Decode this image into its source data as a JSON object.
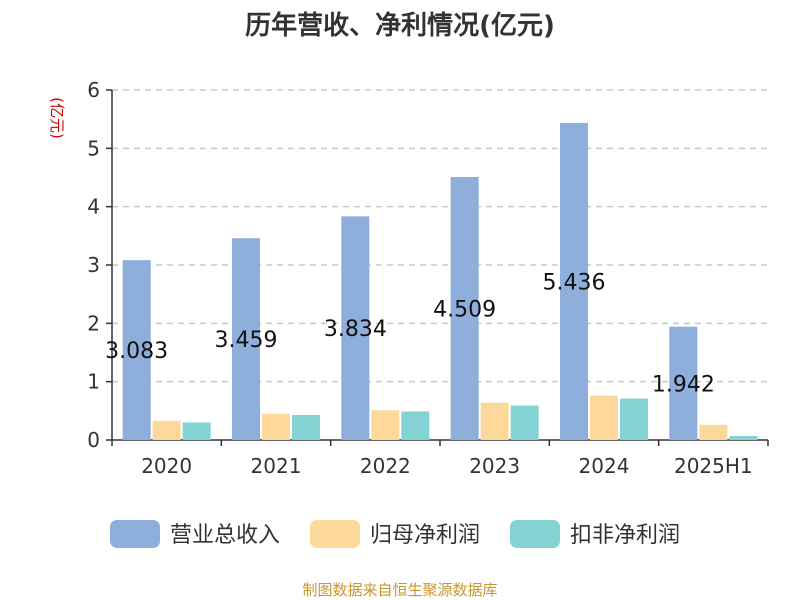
{
  "chart_data": {
    "type": "bar",
    "title": "历年营收、净利情况(亿元)",
    "unit_label": "(亿元)",
    "categories": [
      "2020",
      "2021",
      "2022",
      "2023",
      "2024",
      "2025H1"
    ],
    "y_ticks": [
      "0",
      "1",
      "2",
      "3",
      "4",
      "5",
      "6"
    ],
    "ylim": [
      0,
      6
    ],
    "grid": true,
    "legend_position": "bottom",
    "series": [
      {
        "name": "营业总收入",
        "color": "#8eaedb",
        "values": [
          3.083,
          3.459,
          3.834,
          4.509,
          5.436,
          1.942
        ],
        "labels": [
          "3.083",
          "3.459",
          "3.834",
          "4.509",
          "5.436",
          "1.942"
        ]
      },
      {
        "name": "归母净利润",
        "color": "#fdd89b",
        "values": [
          0.33,
          0.45,
          0.51,
          0.64,
          0.76,
          0.26
        ]
      },
      {
        "name": "扣非净利润",
        "color": "#83d3d5",
        "values": [
          0.3,
          0.43,
          0.49,
          0.59,
          0.71,
          0.07
        ]
      }
    ],
    "source": "制图数据来自恒生聚源数据库"
  }
}
